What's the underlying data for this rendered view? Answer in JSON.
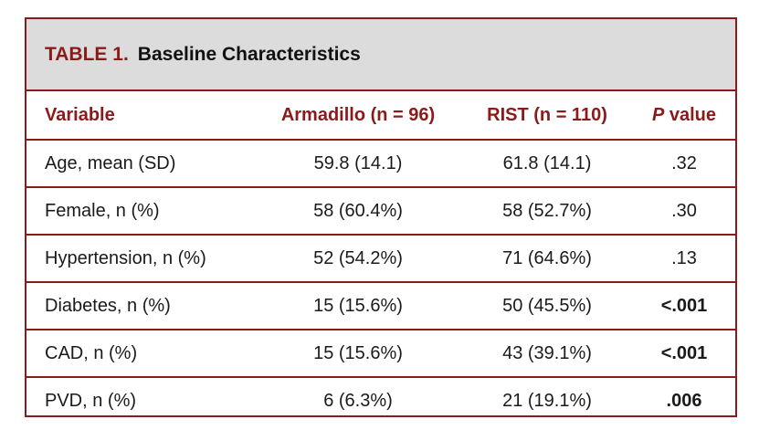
{
  "table": {
    "label": "TABLE 1.",
    "title": "Baseline Characteristics",
    "columns": {
      "variable": "Variable",
      "armadillo": "Armadillo (n = 96)",
      "rist": "RIST (n = 110)",
      "p_letter": "P",
      "p_word": "value"
    },
    "rows": [
      {
        "variable": "Age, mean (SD)",
        "armadillo": "59.8 (14.1)",
        "rist": "61.8 (14.1)",
        "p": ".32",
        "p_bold": false
      },
      {
        "variable": "Female, n (%)",
        "armadillo": "58 (60.4%)",
        "rist": "58 (52.7%)",
        "p": ".30",
        "p_bold": false
      },
      {
        "variable": "Hypertension, n (%)",
        "armadillo": "52 (54.2%)",
        "rist": "71 (64.6%)",
        "p": ".13",
        "p_bold": false
      },
      {
        "variable": "Diabetes, n (%)",
        "armadillo": "15 (15.6%)",
        "rist": "50 (45.5%)",
        "p": "<.001",
        "p_bold": true
      },
      {
        "variable": "CAD, n (%)",
        "armadillo": "15 (15.6%)",
        "rist": "43 (39.1%)",
        "p": "<.001",
        "p_bold": true
      },
      {
        "variable": "PVD, n (%)",
        "armadillo": "6 (6.3%)",
        "rist": "21 (19.1%)",
        "p": ".006",
        "p_bold": true
      }
    ]
  },
  "colors": {
    "accent": "#8b1a1a",
    "title_band": "#dcdcdc",
    "text": "#1a1a1a"
  }
}
